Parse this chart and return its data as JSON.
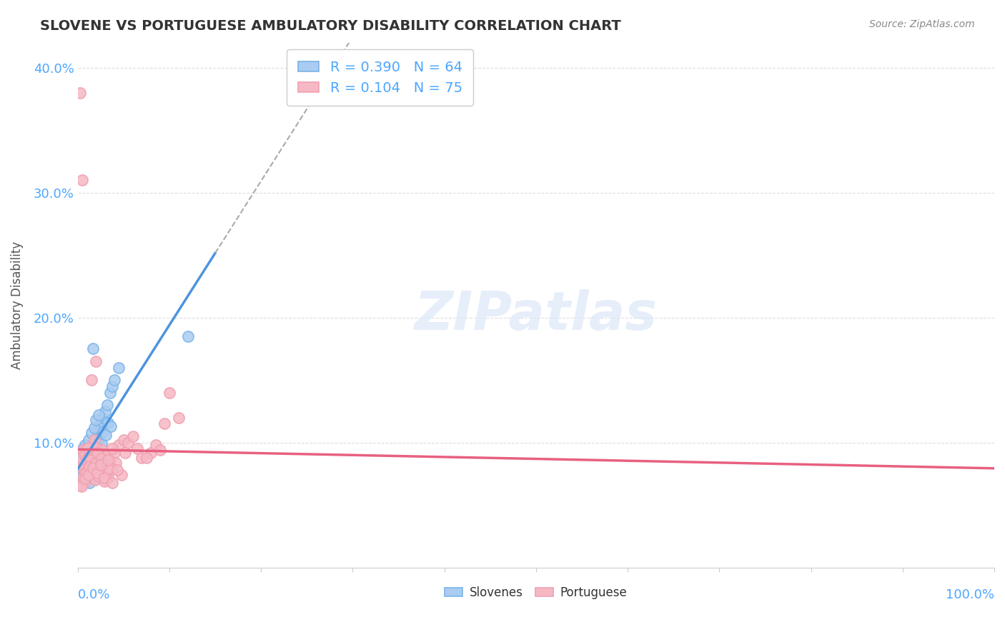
{
  "title": "SLOVENE VS PORTUGUESE AMBULATORY DISABILITY CORRELATION CHART",
  "source": "Source: ZipAtlas.com",
  "ylabel": "Ambulatory Disability",
  "yticks": [
    0.0,
    0.1,
    0.2,
    0.3,
    0.4
  ],
  "ytick_labels": [
    "",
    "10.0%",
    "20.0%",
    "30.0%",
    "40.0%"
  ],
  "background_color": "#ffffff",
  "grid_color": "#dddddd",
  "title_color": "#333333",
  "axis_label_color": "#4da6ff",
  "slovene_face": "#aaccf0",
  "slovene_edge": "#7ab3e8",
  "portuguese_face": "#f5b8c4",
  "portuguese_edge": "#f0a0b0",
  "trend_slovene_color": "#4d94e0",
  "trend_portuguese_color": "#e86080",
  "dashed_line_color": "#aaaaaa",
  "R_slovene": 0.39,
  "N_slovene": 64,
  "R_portuguese": 0.104,
  "N_portuguese": 75,
  "slovene_x": [
    0.002,
    0.003,
    0.004,
    0.005,
    0.005,
    0.006,
    0.007,
    0.007,
    0.008,
    0.009,
    0.01,
    0.01,
    0.011,
    0.012,
    0.013,
    0.014,
    0.015,
    0.016,
    0.017,
    0.018,
    0.02,
    0.021,
    0.022,
    0.025,
    0.027,
    0.03,
    0.032,
    0.035,
    0.038,
    0.04,
    0.005,
    0.003,
    0.006,
    0.008,
    0.009,
    0.012,
    0.015,
    0.018,
    0.02,
    0.023,
    0.003,
    0.004,
    0.007,
    0.01,
    0.014,
    0.017,
    0.021,
    0.024,
    0.028,
    0.033,
    0.002,
    0.005,
    0.008,
    0.011,
    0.016,
    0.019,
    0.022,
    0.026,
    0.031,
    0.036,
    0.12,
    0.045,
    0.013,
    0.019
  ],
  "slovene_y": [
    0.085,
    0.09,
    0.088,
    0.092,
    0.082,
    0.095,
    0.087,
    0.091,
    0.083,
    0.089,
    0.094,
    0.08,
    0.086,
    0.093,
    0.081,
    0.096,
    0.084,
    0.088,
    0.175,
    0.09,
    0.1,
    0.105,
    0.11,
    0.115,
    0.12,
    0.125,
    0.13,
    0.14,
    0.145,
    0.15,
    0.078,
    0.082,
    0.076,
    0.098,
    0.074,
    0.102,
    0.108,
    0.112,
    0.118,
    0.122,
    0.072,
    0.075,
    0.079,
    0.083,
    0.087,
    0.091,
    0.097,
    0.103,
    0.109,
    0.116,
    0.07,
    0.073,
    0.077,
    0.081,
    0.085,
    0.089,
    0.093,
    0.099,
    0.106,
    0.113,
    0.185,
    0.16,
    0.068,
    0.071
  ],
  "portuguese_x": [
    0.002,
    0.004,
    0.005,
    0.006,
    0.007,
    0.008,
    0.009,
    0.01,
    0.012,
    0.013,
    0.015,
    0.016,
    0.017,
    0.018,
    0.019,
    0.02,
    0.022,
    0.023,
    0.025,
    0.027,
    0.03,
    0.032,
    0.033,
    0.035,
    0.037,
    0.04,
    0.042,
    0.045,
    0.048,
    0.05,
    0.003,
    0.005,
    0.007,
    0.011,
    0.014,
    0.021,
    0.024,
    0.028,
    0.031,
    0.036,
    0.003,
    0.006,
    0.009,
    0.013,
    0.016,
    0.019,
    0.023,
    0.026,
    0.029,
    0.034,
    0.004,
    0.008,
    0.012,
    0.017,
    0.021,
    0.025,
    0.029,
    0.033,
    0.038,
    0.043,
    0.055,
    0.06,
    0.065,
    0.07,
    0.08,
    0.085,
    0.09,
    0.095,
    0.1,
    0.11,
    0.015,
    0.02,
    0.038,
    0.052,
    0.075
  ],
  "portuguese_y": [
    0.082,
    0.088,
    0.08,
    0.094,
    0.076,
    0.09,
    0.072,
    0.086,
    0.078,
    0.092,
    0.084,
    0.098,
    0.074,
    0.102,
    0.07,
    0.096,
    0.082,
    0.088,
    0.08,
    0.094,
    0.076,
    0.09,
    0.072,
    0.086,
    0.078,
    0.092,
    0.084,
    0.098,
    0.074,
    0.102,
    0.38,
    0.31,
    0.068,
    0.096,
    0.086,
    0.092,
    0.078,
    0.084,
    0.07,
    0.08,
    0.066,
    0.072,
    0.075,
    0.081,
    0.077,
    0.083,
    0.073,
    0.087,
    0.069,
    0.079,
    0.065,
    0.071,
    0.074,
    0.08,
    0.076,
    0.082,
    0.072,
    0.086,
    0.068,
    0.078,
    0.1,
    0.105,
    0.095,
    0.088,
    0.092,
    0.098,
    0.094,
    0.115,
    0.14,
    0.12,
    0.15,
    0.165,
    0.095,
    0.092,
    0.088
  ]
}
